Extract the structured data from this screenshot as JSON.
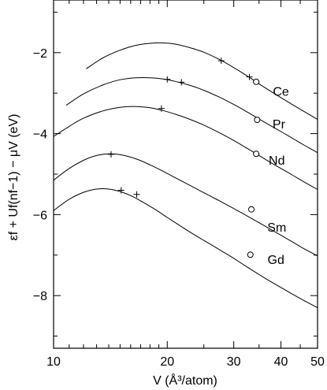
{
  "chart_data": {
    "type": "line",
    "x_scale": "log",
    "xlabel": "V (Å³/atom)",
    "ylabel": "εf + Uf(nf−1) − μV (eV)",
    "xlim": [
      10,
      50
    ],
    "ylim": [
      -9.3,
      -0.7
    ],
    "xticks": [
      10,
      20,
      30,
      40,
      50
    ],
    "xtick_labels": [
      "10",
      "20",
      "30",
      "40",
      "50"
    ],
    "yticks": [
      -2,
      -4,
      -6,
      -8
    ],
    "ytick_labels": [
      "−2",
      "−4",
      "−6",
      "−8"
    ],
    "grid": false,
    "legend": "none",
    "series": [
      {
        "name": "Ce",
        "x": [
          12.2,
          13.5,
          15.0,
          16.5,
          18.0,
          19.5,
          21.0,
          23.0,
          25.0,
          27.5,
          30.0,
          32.5,
          35.0,
          37.5,
          40.0,
          43.0,
          46.0,
          50.0
        ],
        "y": [
          -2.4,
          -2.13,
          -1.94,
          -1.82,
          -1.77,
          -1.76,
          -1.79,
          -1.88,
          -1.99,
          -2.17,
          -2.37,
          -2.57,
          -2.77,
          -2.95,
          -3.11,
          -3.29,
          -3.45,
          -3.65
        ],
        "markers_plus": [
          {
            "x": 27.8,
            "y": -2.2
          },
          {
            "x": 33.0,
            "y": -2.6
          }
        ],
        "markers_circle": [
          {
            "x": 34.4,
            "y": -2.72
          }
        ],
        "label_pos": {
          "x": 40.0,
          "y": -2.95
        }
      },
      {
        "name": "Pr",
        "x": [
          10.8,
          12.0,
          13.5,
          15.0,
          16.5,
          18.0,
          19.5,
          21.0,
          23.0,
          25.0,
          27.5,
          30.0,
          32.5,
          35.0,
          37.5,
          40.0,
          43.0,
          46.0,
          50.0
        ],
        "y": [
          -3.3,
          -3.02,
          -2.8,
          -2.67,
          -2.62,
          -2.62,
          -2.65,
          -2.71,
          -2.81,
          -2.93,
          -3.1,
          -3.28,
          -3.46,
          -3.64,
          -3.8,
          -3.95,
          -4.12,
          -4.28,
          -4.47
        ],
        "markers_plus": [
          {
            "x": 20.0,
            "y": -2.66
          },
          {
            "x": 21.8,
            "y": -2.73
          }
        ],
        "markers_circle": [
          {
            "x": 34.6,
            "y": -3.66
          }
        ],
        "label_pos": {
          "x": 39.5,
          "y": -3.75
        }
      },
      {
        "name": "Nd",
        "x": [
          10.0,
          11.0,
          12.0,
          13.5,
          15.0,
          16.5,
          18.0,
          19.5,
          21.0,
          23.0,
          25.0,
          27.5,
          30.0,
          32.5,
          35.0,
          37.5,
          40.0,
          43.0,
          46.0,
          50.0
        ],
        "y": [
          -4.07,
          -3.82,
          -3.62,
          -3.44,
          -3.35,
          -3.33,
          -3.36,
          -3.43,
          -3.52,
          -3.65,
          -3.79,
          -3.98,
          -4.17,
          -4.36,
          -4.54,
          -4.71,
          -4.86,
          -5.03,
          -5.19,
          -5.38
        ],
        "markers_plus": [
          {
            "x": 19.3,
            "y": -3.38
          }
        ],
        "markers_circle": [
          {
            "x": 34.4,
            "y": -4.5
          }
        ],
        "label_pos": {
          "x": 39.0,
          "y": -4.65
        }
      },
      {
        "name": "Sm",
        "x": [
          10.0,
          11.0,
          12.0,
          13.0,
          14.0,
          15.0,
          16.5,
          18.0,
          19.5,
          21.0,
          23.0,
          25.0,
          27.5,
          30.0,
          32.5,
          35.0,
          37.5,
          40.0,
          43.0,
          46.0,
          50.0
        ],
        "y": [
          -5.15,
          -4.86,
          -4.66,
          -4.54,
          -4.5,
          -4.52,
          -4.62,
          -4.77,
          -4.93,
          -5.09,
          -5.28,
          -5.46,
          -5.66,
          -5.85,
          -6.03,
          -6.2,
          -6.36,
          -6.51,
          -6.68,
          -6.84,
          -7.02
        ],
        "markers_plus": [
          {
            "x": 14.2,
            "y": -4.51
          }
        ],
        "markers_circle": [
          {
            "x": 33.4,
            "y": -5.87
          }
        ],
        "label_pos": {
          "x": 39.0,
          "y": -6.3
        }
      },
      {
        "name": "Gd",
        "x": [
          10.0,
          11.0,
          12.0,
          13.0,
          14.0,
          15.0,
          16.0,
          17.0,
          18.5,
          20.0,
          22.0,
          24.0,
          26.0,
          28.0,
          30.0,
          32.5,
          35.0,
          37.5,
          40.0,
          43.0,
          46.0,
          50.0
        ],
        "y": [
          -5.9,
          -5.62,
          -5.45,
          -5.37,
          -5.37,
          -5.43,
          -5.53,
          -5.66,
          -5.86,
          -6.07,
          -6.32,
          -6.54,
          -6.73,
          -6.91,
          -7.08,
          -7.29,
          -7.48,
          -7.65,
          -7.8,
          -7.97,
          -8.12,
          -8.3
        ],
        "markers_plus": [
          {
            "x": 15.1,
            "y": -5.4
          },
          {
            "x": 16.6,
            "y": -5.5
          }
        ],
        "markers_circle": [
          {
            "x": 33.2,
            "y": -6.99
          }
        ],
        "label_pos": {
          "x": 38.8,
          "y": -7.1
        }
      }
    ]
  }
}
